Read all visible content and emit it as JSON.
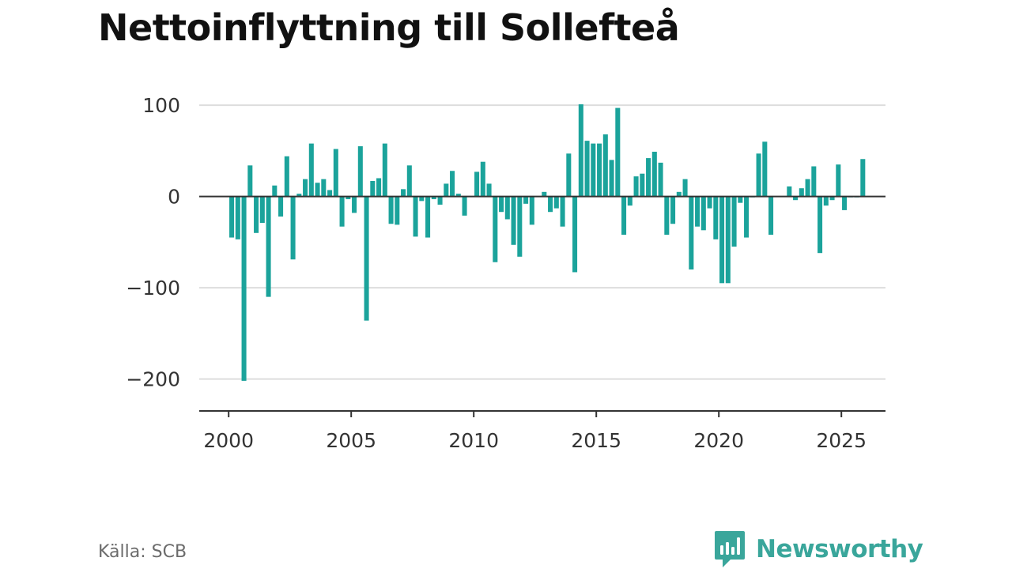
{
  "title": "Nettoinflyttning till Sollefteå",
  "source": "Källa: SCB",
  "brand": {
    "name": "Newsworthy",
    "icon": "newsworthy-logo-icon",
    "color": "#3aa69b"
  },
  "colors": {
    "bar": "#1ba39b",
    "grid": "#dddddd",
    "axis": "#333333",
    "zero_line": "#333333"
  },
  "chart_data": {
    "type": "bar",
    "title": "Nettoinflyttning till Sollefteå",
    "xlabel": "",
    "ylabel": "",
    "xlim": [
      1998.8,
      2026.8
    ],
    "ylim": [
      -235,
      120
    ],
    "x_ticks": [
      2000,
      2005,
      2010,
      2015,
      2020,
      2025
    ],
    "x_tick_labels": [
      "2000",
      "2005",
      "2010",
      "2015",
      "2020",
      "2025"
    ],
    "y_ticks": [
      100,
      0,
      -100,
      -200
    ],
    "y_tick_labels": [
      "100",
      "0",
      "−100",
      "−200"
    ],
    "grid": true,
    "legend": "none",
    "x_unit": "quarter",
    "series": [
      {
        "start": 2000.0,
        "step": 0.25,
        "values": [
          -45,
          -47,
          -202,
          34,
          -40,
          -29,
          -110,
          12,
          -22,
          44,
          -69,
          3,
          19,
          58,
          15,
          19,
          7,
          52,
          -33,
          -3,
          -18,
          55,
          -136,
          17,
          20,
          58,
          -30,
          -31,
          8,
          34,
          -44,
          -5,
          -45,
          -3,
          -9,
          14,
          28,
          3,
          -21,
          0,
          27,
          38,
          14,
          -72,
          -17,
          -25,
          -53,
          -66,
          -8,
          -31,
          0,
          5,
          -17,
          -13,
          -33,
          47,
          -83,
          101,
          61,
          58,
          58,
          68,
          40,
          97,
          -42,
          -10,
          22,
          25,
          42,
          49,
          37,
          -42,
          -30,
          5,
          19,
          -80,
          -33,
          -37,
          -13,
          -47,
          -95,
          -95,
          -55,
          -7,
          -45,
          -1,
          47,
          60,
          -42,
          0,
          0,
          11,
          -4,
          9,
          19,
          33,
          -62,
          -10,
          -4,
          35,
          -15,
          -1,
          -1,
          41
        ]
      }
    ]
  }
}
